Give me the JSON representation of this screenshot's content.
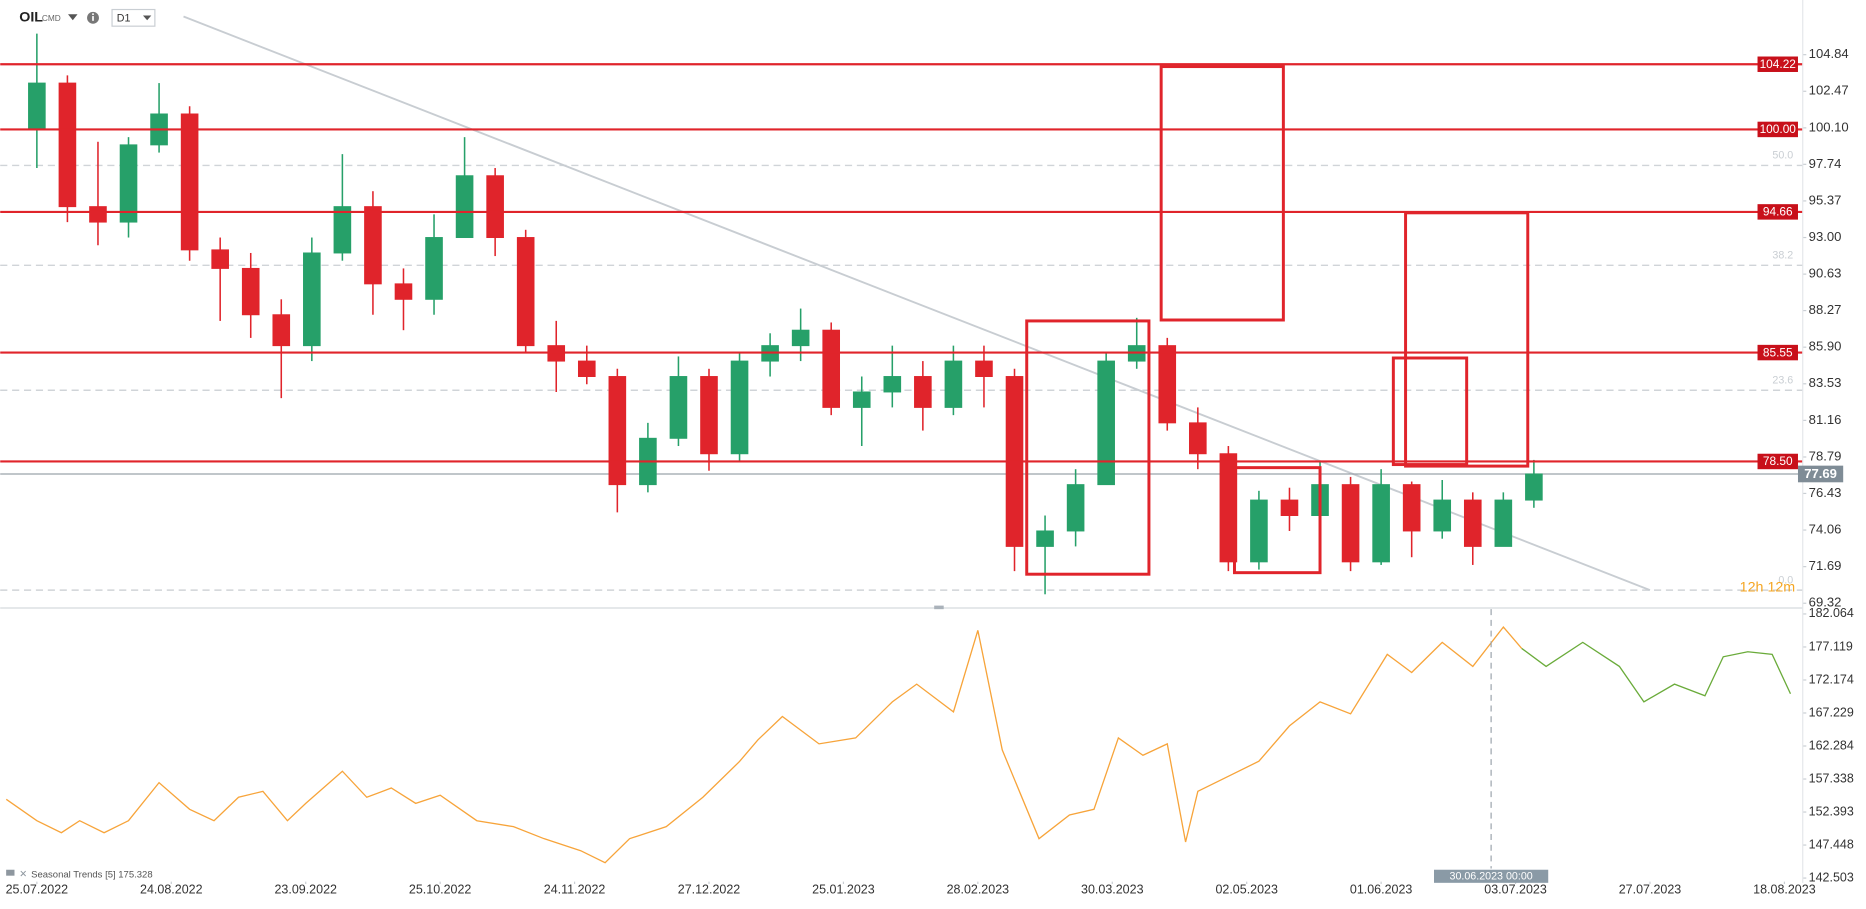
{
  "chart_data": [
    {
      "type": "candlestick",
      "title": "OIL",
      "subtitle": "CMD",
      "timeframe": "D1",
      "x": [
        0,
        5,
        10,
        15,
        20,
        25,
        30,
        35,
        40,
        45,
        50,
        55,
        60,
        65,
        70,
        75,
        80,
        85,
        90,
        95,
        100,
        105,
        110,
        115,
        120,
        125,
        130,
        135,
        140,
        145,
        150,
        155,
        160,
        165,
        170,
        175,
        180,
        185,
        190,
        195,
        200,
        205,
        210,
        215,
        220,
        225,
        230,
        235,
        240,
        245
      ],
      "open": [
        100,
        103,
        95,
        94,
        99,
        101,
        92.2,
        91,
        88,
        86,
        92,
        95,
        90,
        89,
        93,
        97,
        93,
        86,
        85,
        84,
        77,
        80,
        84,
        79,
        85,
        86,
        87,
        82,
        83,
        84,
        82,
        85,
        84,
        73,
        74,
        77,
        85,
        86,
        81,
        79,
        72,
        76,
        75,
        77,
        72,
        77,
        74,
        76,
        73,
        76
      ],
      "high": [
        106.2,
        103.5,
        99.2,
        99.5,
        103,
        101.5,
        93,
        92,
        89,
        93,
        98.4,
        96,
        91,
        94.5,
        99.5,
        97.5,
        93.5,
        87.6,
        86,
        84.5,
        81,
        85.3,
        84.5,
        85.5,
        86.8,
        88.4,
        87.5,
        84,
        86,
        85,
        86,
        86,
        84.5,
        75,
        78,
        85.5,
        87.8,
        86.5,
        82,
        79.5,
        76.6,
        76.8,
        78.5,
        77.5,
        78,
        77.2,
        77.3,
        76.5,
        76.5,
        78.6
      ],
      "low": [
        97.5,
        94,
        92.5,
        93,
        98.5,
        91.5,
        87.6,
        86.5,
        82.6,
        85,
        91.5,
        88,
        87,
        88,
        93,
        91.8,
        85.5,
        83,
        83.5,
        75.2,
        76.5,
        79.5,
        77.9,
        78.5,
        84,
        85,
        81.5,
        79.5,
        82,
        80.5,
        81.5,
        82,
        71.4,
        69.9,
        73,
        77,
        84.5,
        80.5,
        78,
        71.4,
        71.5,
        74,
        74.5,
        71.4,
        71.8,
        72.3,
        73.5,
        71.8,
        73,
        75.5
      ],
      "close": [
        103,
        95,
        94,
        99,
        101,
        92.2,
        91,
        88,
        86,
        92,
        95,
        90,
        89,
        93,
        97,
        93,
        86,
        85,
        84,
        77,
        80,
        84,
        79,
        85,
        86,
        87,
        82,
        83,
        84,
        82,
        85,
        84,
        73,
        74,
        77,
        85,
        86,
        81,
        79,
        72,
        76,
        75,
        77,
        72,
        77,
        74,
        76,
        73,
        76,
        77.69
      ],
      "up_color": "#26a069",
      "down_color": "#e0242b",
      "xlim": [
        -6,
        289
      ],
      "ylim": [
        69.09,
        108.38
      ],
      "yticks": [
        104.84,
        102.47,
        {
          "value": 100.1,
          "label": "100.10"
        },
        97.74,
        95.37,
        {
          "value": 93,
          "label": "93.00"
        },
        90.63,
        88.27,
        {
          "value": 85.9,
          "label": "85.90"
        },
        83.53,
        81.16,
        78.79,
        76.43,
        74.06,
        71.69,
        69.32
      ],
      "xticks": [
        {
          "value": 0,
          "label": "25.07.2022"
        },
        {
          "value": 22,
          "label": "24.08.2022"
        },
        {
          "value": 44,
          "label": "23.09.2022"
        },
        {
          "value": 66,
          "label": "25.10.2022"
        },
        {
          "value": 88,
          "label": "24.11.2022"
        },
        {
          "value": 110,
          "label": "27.12.2022"
        },
        {
          "value": 132,
          "label": "25.01.2023"
        },
        {
          "value": 154,
          "label": "28.02.2023"
        },
        {
          "value": 176,
          "label": "30.03.2023"
        },
        {
          "value": 198,
          "label": "02.05.2023"
        },
        {
          "value": 220,
          "label": "01.06.2023"
        },
        {
          "value": 242,
          "label": "03.07.2023"
        },
        {
          "value": 264,
          "label": "27.07.2023"
        },
        {
          "value": 286,
          "label": "18.08.2023"
        }
      ],
      "levels": {
        "color": "#e0242b",
        "values": [
          104.22,
          {
            "value": 100,
            "label": "100.00"
          },
          94.66,
          85.55,
          {
            "value": 78.5,
            "label": "78.50"
          }
        ]
      },
      "last_price": 77.69,
      "fib": [
        {
          "label": "50.0",
          "price": 97.67
        },
        {
          "label": "38.2",
          "price": 91.2
        },
        {
          "label": "23.6",
          "price": 83.11
        },
        {
          "label": "0.0",
          "price": 70.17
        }
      ],
      "trendline": {
        "x": [
          24,
          264
        ],
        "y": [
          107.31,
          70.17
        ]
      },
      "boxes": [
        {
          "x": [
            162,
            182
          ],
          "y": [
            71.2,
            87.6
          ]
        },
        {
          "x": [
            184,
            204
          ],
          "y": [
            87.66,
            104.07
          ]
        },
        {
          "x": [
            196,
            210
          ],
          "y": [
            71.3,
            78.1
          ]
        },
        {
          "x": [
            222,
            234
          ],
          "y": [
            78.3,
            85.2
          ]
        },
        {
          "x": [
            224,
            244
          ],
          "y": [
            78.2,
            94.6
          ]
        }
      ],
      "countdown": "12h 12m"
    },
    {
      "type": "line",
      "legend": "Seasonal Trends",
      "period": "[5]",
      "last_value": 175.328,
      "ylim": [
        141.79,
        182.78
      ],
      "yticks": [
        182.064,
        177.119,
        172.174,
        167.229,
        162.284,
        157.338,
        152.393,
        147.448,
        142.503
      ],
      "series": [
        {
          "color": "#f7a43a",
          "x": [
            -5,
            0,
            4,
            7,
            11,
            15,
            20,
            25,
            29,
            33,
            37,
            41,
            44,
            50,
            54,
            58,
            62,
            66,
            72,
            78,
            83,
            89,
            93,
            97,
            103,
            109,
            115,
            118,
            122,
            128,
            134,
            140,
            144,
            150,
            154,
            158,
            164,
            169,
            173,
            177,
            181,
            185,
            188,
            190,
            194,
            200,
            205,
            210,
            215,
            221,
            225,
            230,
            235,
            240,
            243
          ],
          "values": [
            154.3,
            151.1,
            149.3,
            151.1,
            149.3,
            151.1,
            156.8,
            152.8,
            151.1,
            154.6,
            155.5,
            151.1,
            153.7,
            158.5,
            154.6,
            156.0,
            153.7,
            154.9,
            151.1,
            150.2,
            148.4,
            146.6,
            144.8,
            148.4,
            150.2,
            154.6,
            159.96,
            163.2,
            166.7,
            162.6,
            163.5,
            168.9,
            171.55,
            167.4,
            179.6,
            161.7,
            148.4,
            151.95,
            152.8,
            163.5,
            160.9,
            162.6,
            147.9,
            155.5,
            157.3,
            160.0,
            165.3,
            168.9,
            167.1,
            176.0,
            173.3,
            177.8,
            174.2,
            180.1,
            176.9
          ]
        },
        {
          "color": "#6aab3a",
          "x": [
            243,
            247,
            253,
            259,
            263,
            268,
            273,
            276,
            280,
            284,
            287
          ],
          "values": [
            176.9,
            174.2,
            177.8,
            174.2,
            168.9,
            171.55,
            169.8,
            175.65,
            176.4,
            176.0,
            170.1
          ]
        }
      ],
      "crosshair": {
        "x": 238,
        "label": "30.06.2023 00:00"
      }
    }
  ]
}
